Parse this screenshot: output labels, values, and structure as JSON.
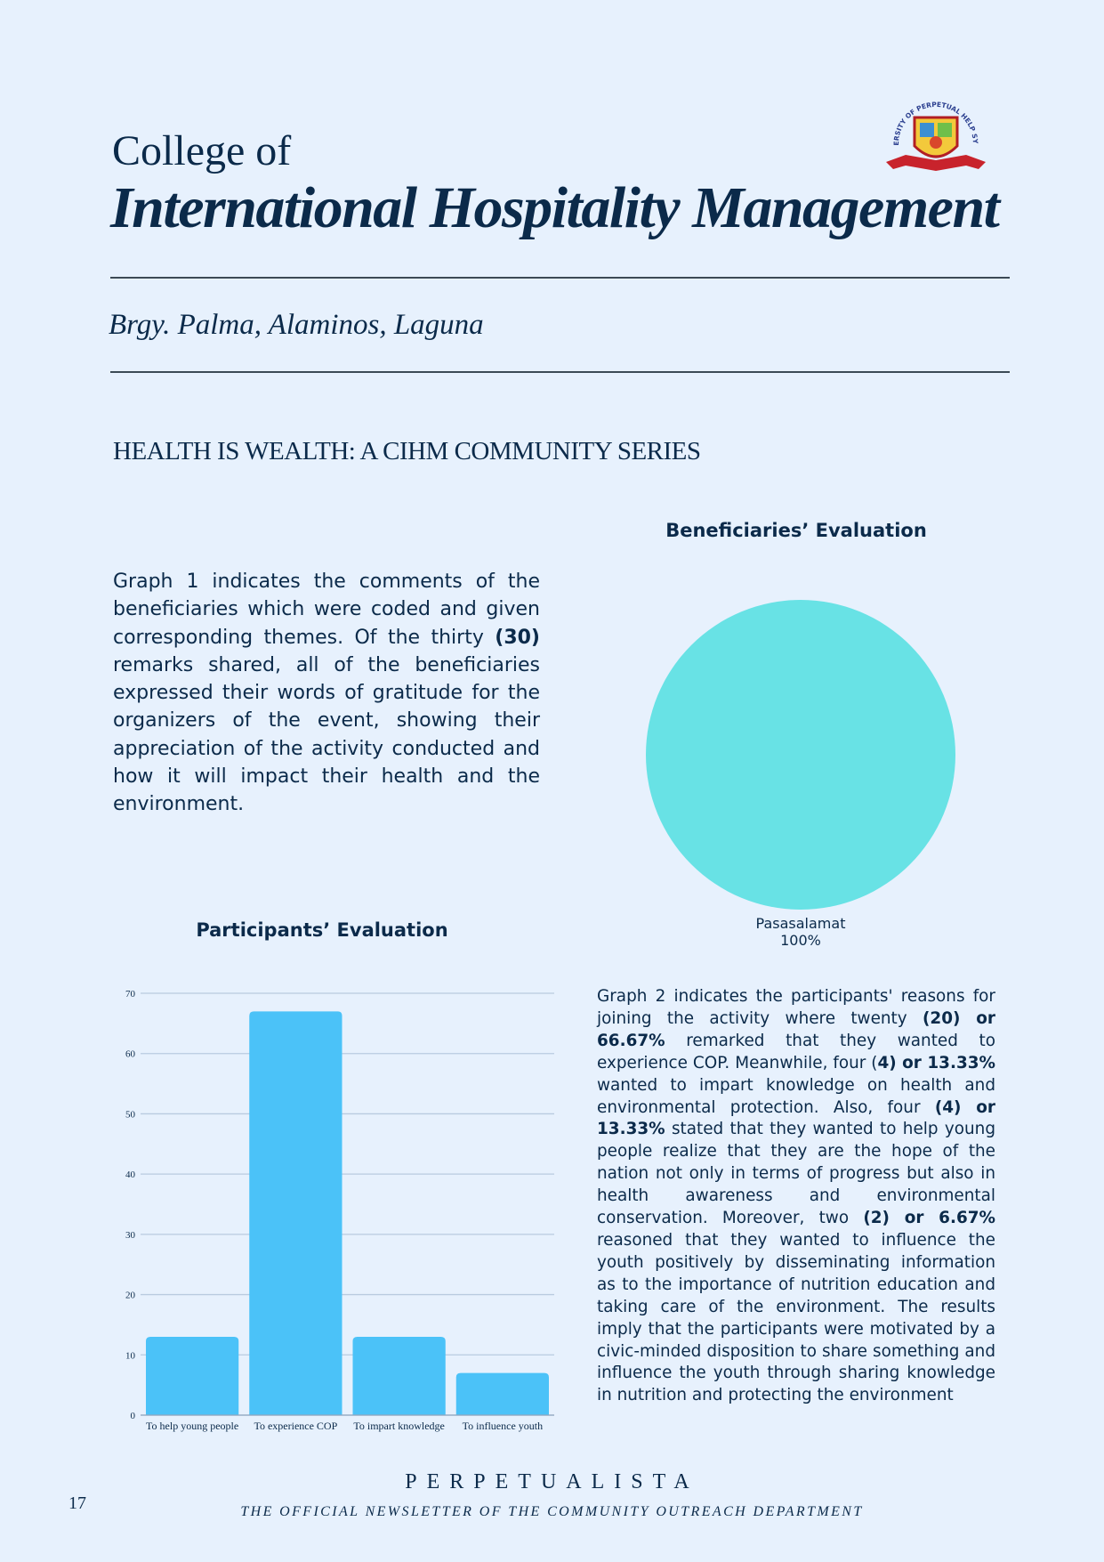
{
  "header": {
    "college_of": "College of",
    "college_name": "International Hospitality Management",
    "location": "Brgy. Palma, Alaminos, Laguna",
    "series_title": "HEALTH IS WEALTH: A CIHM COMMUNITY SERIES",
    "logo_text": "UNIVERSITY OF PERPETUAL HELP SYSTEM"
  },
  "graph1": {
    "p1": "Graph 1 indicates the comments of the beneficiaries which were coded and given corresponding themes. Of the thirty",
    "b1": "(30)",
    "p2": "remarks shared, all of the beneficiaries expressed their words of gratitude for the organizers of the event, showing their appreciation of the activity conducted and how it will impact their health and the environment."
  },
  "graph2": {
    "p1": "Graph  2 indicates the participants' reasons for joining the activity where twenty",
    "b1": "(20) or 66.67%",
    "p2": "remarked that they wanted to experience COP. Meanwhile, four (",
    "b2": "4) or 13.33%",
    "p3": "wanted to impart knowledge on health and environmental protection. Also, four",
    "b3": "(4) or 13.33%",
    "p4": "stated that they wanted to help young people realize that they are the hope of the nation not only in terms of progress but also in health awareness and environmental conservation. Moreover, two",
    "b4": "(2) or 6.67%",
    "p5": "reasoned that they wanted to influence the youth positively by disseminating information as to the importance of nutrition education and taking care of the environment. The results imply that the participants were motivated by a civic-minded disposition to share something and influence the youth through sharing knowledge in nutrition and protecting the environment"
  },
  "footer": {
    "name": "PERPETUALISTA",
    "subtitle": "THE OFFICIAL NEWSLETTER OF THE COMMUNITY OUTREACH DEPARTMENT",
    "page_number": "17"
  },
  "chart_data": [
    {
      "type": "pie",
      "title": "Beneficiaries’ Evaluation",
      "categories": [
        "Pasasalamat"
      ],
      "values": [
        100
      ],
      "value_labels": [
        "100%"
      ],
      "colors": [
        "#68e2e5"
      ]
    },
    {
      "type": "bar",
      "title": "Participants’ Evaluation",
      "categories": [
        "To help young people",
        "To experience COP",
        "To impart knowledge",
        "To influence youth"
      ],
      "values": [
        13,
        67,
        13,
        7
      ],
      "ylim": [
        0,
        70
      ],
      "yticks": [
        "0",
        "10",
        "20",
        "30",
        "40",
        "50",
        "60",
        "70"
      ],
      "grid": true,
      "bar_color": "#4bc2f8"
    }
  ]
}
